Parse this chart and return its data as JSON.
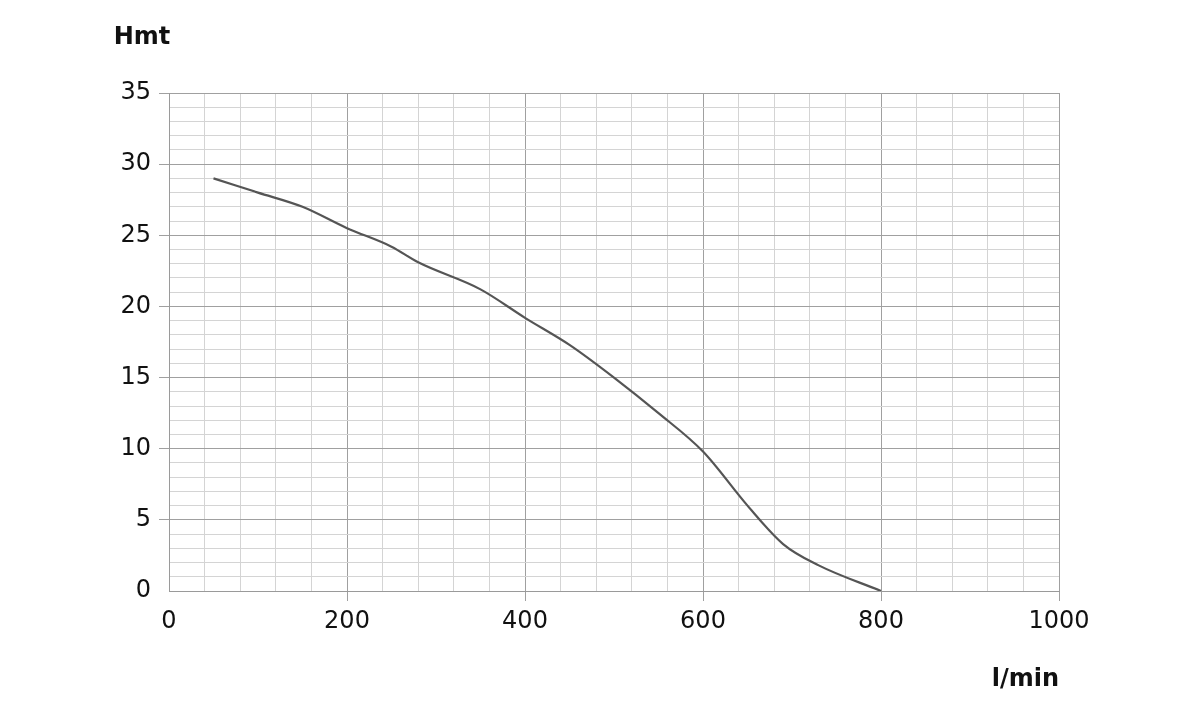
{
  "chart_data": {
    "type": "line",
    "xlabel": "l/min",
    "ylabel": "Hmt",
    "xlim": [
      0,
      1000
    ],
    "ylim": [
      0,
      35
    ],
    "xticks": [
      0,
      {
        "value": 40,
        "label": null
      },
      {
        "value": 80,
        "label": null
      },
      {
        "value": 120,
        "label": null
      },
      {
        "value": 160,
        "label": null
      },
      200,
      {
        "value": 240,
        "label": null
      },
      {
        "value": 280,
        "label": null
      },
      {
        "value": 320,
        "label": null
      },
      {
        "value": 360,
        "label": null
      },
      400,
      {
        "value": 440,
        "label": null
      },
      {
        "value": 480,
        "label": null
      },
      {
        "value": 520,
        "label": null
      },
      {
        "value": 560,
        "label": null
      },
      600,
      {
        "value": 640,
        "label": null
      },
      {
        "value": 680,
        "label": null
      },
      {
        "value": 720,
        "label": null
      },
      {
        "value": 760,
        "label": null
      },
      800,
      {
        "value": 840,
        "label": null
      },
      {
        "value": 880,
        "label": null
      },
      {
        "value": 920,
        "label": null
      },
      {
        "value": 960,
        "label": null
      },
      1000
    ],
    "yticks": [
      0,
      {
        "value": 1,
        "label": null
      },
      {
        "value": 2,
        "label": null
      },
      {
        "value": 3,
        "label": null
      },
      {
        "value": 4,
        "label": null
      },
      5,
      {
        "value": 6,
        "label": null
      },
      {
        "value": 7,
        "label": null
      },
      {
        "value": 8,
        "label": null
      },
      {
        "value": 9,
        "label": null
      },
      10,
      {
        "value": 11,
        "label": null
      },
      {
        "value": 12,
        "label": null
      },
      {
        "value": 13,
        "label": null
      },
      {
        "value": 14,
        "label": null
      },
      15,
      {
        "value": 16,
        "label": null
      },
      {
        "value": 17,
        "label": null
      },
      {
        "value": 18,
        "label": null
      },
      {
        "value": 19,
        "label": null
      },
      20,
      {
        "value": 21,
        "label": null
      },
      {
        "value": 22,
        "label": null
      },
      {
        "value": 23,
        "label": null
      },
      {
        "value": 24,
        "label": null
      },
      25,
      {
        "value": 26,
        "label": null
      },
      {
        "value": 27,
        "label": null
      },
      {
        "value": 28,
        "label": null
      },
      {
        "value": 29,
        "label": null
      },
      30,
      {
        "value": 31,
        "label": null
      },
      {
        "value": 32,
        "label": null
      },
      {
        "value": 33,
        "label": null
      },
      {
        "value": 34,
        "label": null
      },
      35
    ],
    "grid": true,
    "legend": false,
    "marker": "none",
    "line_style": "solid",
    "series": [
      {
        "color": "#555555",
        "x": [
          50,
          100,
          150,
          200,
          250,
          280,
          350,
          400,
          450,
          500,
          550,
          600,
          650,
          690,
          730,
          800
        ],
        "values": [
          29,
          28,
          27,
          25.5,
          24.2,
          23.1,
          21.2,
          19.2,
          17.3,
          15,
          12.5,
          9.8,
          6,
          3.3,
          1.8,
          0
        ]
      }
    ]
  }
}
